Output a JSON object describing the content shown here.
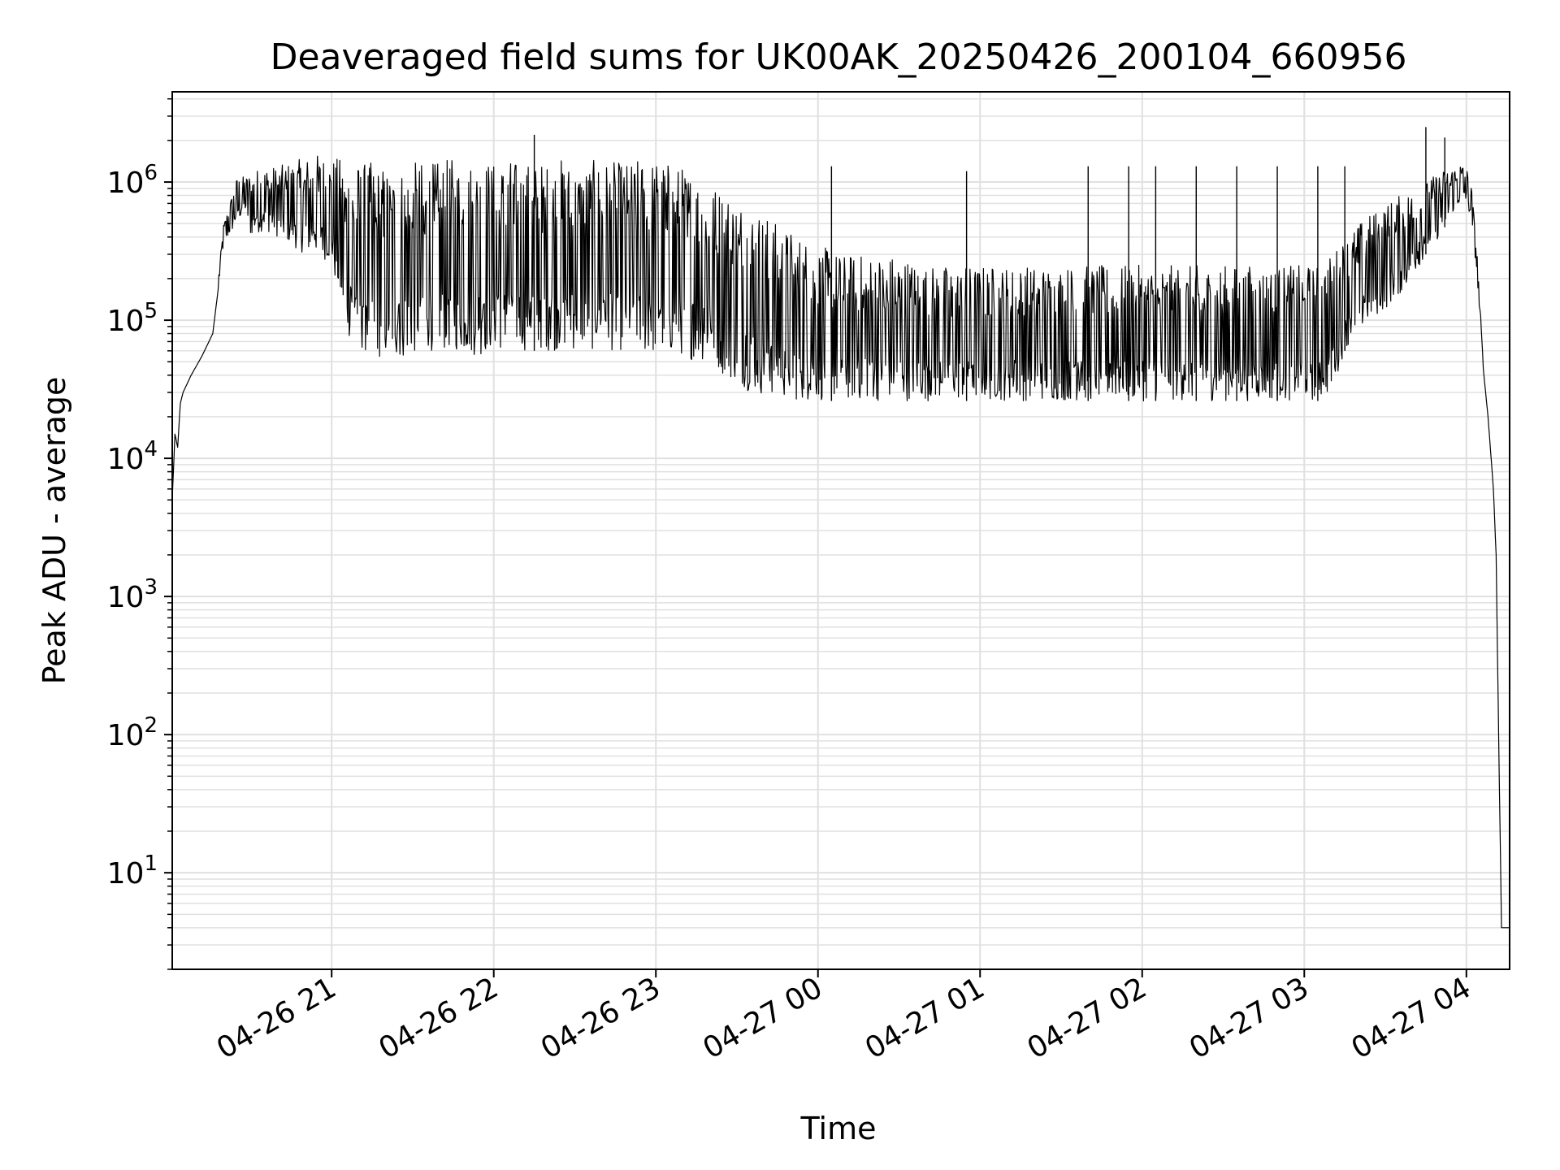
{
  "chart_data": {
    "type": "line",
    "title": "Deaveraged field sums for UK00AK_20250426_200104_660956",
    "xlabel": "Time",
    "ylabel": "Peak ADU - average",
    "yscale": "log",
    "grid": true,
    "legend": "none",
    "line_color": "#000000",
    "grid_color": "#e0e0e0",
    "xlim": [
      "2025-04-26 20:01",
      "2025-04-27 04:16"
    ],
    "ylim": [
      2,
      4500000
    ],
    "x_ticks": [
      {
        "t": "2025-04-26 21:00",
        "label": "04-26 21"
      },
      {
        "t": "2025-04-26 22:00",
        "label": "04-26 22"
      },
      {
        "t": "2025-04-26 23:00",
        "label": "04-26 23"
      },
      {
        "t": "2025-04-27 00:00",
        "label": "04-27 00"
      },
      {
        "t": "2025-04-27 01:00",
        "label": "04-27 01"
      },
      {
        "t": "2025-04-27 02:00",
        "label": "04-27 02"
      },
      {
        "t": "2025-04-27 03:00",
        "label": "04-27 03"
      },
      {
        "t": "2025-04-27 04:00",
        "label": "04-27 04"
      }
    ],
    "y_ticks": [
      {
        "value": 10,
        "base": "10",
        "exp": "1"
      },
      {
        "value": 100,
        "base": "10",
        "exp": "2"
      },
      {
        "value": 1000,
        "base": "10",
        "exp": "3"
      },
      {
        "value": 10000,
        "base": "10",
        "exp": "4"
      },
      {
        "value": 100000,
        "base": "10",
        "exp": "5"
      },
      {
        "value": 1000000,
        "base": "10",
        "exp": "6"
      }
    ],
    "series": [
      {
        "x": [
          "2025-04-26 20:01",
          "2025-04-26 20:02",
          "2025-04-26 20:03",
          "2025-04-26 20:04",
          "2025-04-26 20:05",
          "2025-04-26 20:08",
          "2025-04-26 20:12",
          "2025-04-26 20:16",
          "2025-04-26 20:20",
          "2025-04-26 20:25",
          "2025-04-26 20:28",
          "2025-04-26 20:30",
          "2025-04-26 20:35",
          "2025-04-26 20:40",
          "2025-04-26 20:45",
          "2025-04-26 20:50",
          "2025-04-26 20:55",
          "2025-04-26 21:00",
          "2025-04-26 21:05",
          "2025-04-26 21:10",
          "2025-04-26 21:15",
          "2025-04-26 21:20",
          "2025-04-26 21:25",
          "2025-04-26 21:30",
          "2025-04-26 21:35",
          "2025-04-26 21:40",
          "2025-04-26 21:45",
          "2025-04-26 21:50",
          "2025-04-26 21:55",
          "2025-04-26 22:00",
          "2025-04-26 22:05",
          "2025-04-26 22:10",
          "2025-04-26 22:15",
          "2025-04-26 22:20",
          "2025-04-26 22:25",
          "2025-04-26 22:30",
          "2025-04-26 22:35",
          "2025-04-26 22:40",
          "2025-04-26 22:45",
          "2025-04-26 22:50",
          "2025-04-26 22:55",
          "2025-04-26 23:00",
          "2025-04-26 23:05",
          "2025-04-26 23:10",
          "2025-04-26 23:15",
          "2025-04-26 23:20",
          "2025-04-26 23:25",
          "2025-04-26 23:30",
          "2025-04-26 23:35",
          "2025-04-26 23:40",
          "2025-04-26 23:45",
          "2025-04-26 23:50",
          "2025-04-26 23:55",
          "2025-04-27 00:00",
          "2025-04-27 00:10",
          "2025-04-27 00:20",
          "2025-04-27 00:30",
          "2025-04-27 00:40",
          "2025-04-27 00:50",
          "2025-04-27 01:00",
          "2025-04-27 01:10",
          "2025-04-27 01:20",
          "2025-04-27 01:30",
          "2025-04-27 01:40",
          "2025-04-27 01:50",
          "2025-04-27 02:00",
          "2025-04-27 02:10",
          "2025-04-27 02:20",
          "2025-04-27 02:30",
          "2025-04-27 02:40",
          "2025-04-27 02:50",
          "2025-04-27 03:00",
          "2025-04-27 03:05",
          "2025-04-27 03:10",
          "2025-04-27 03:15",
          "2025-04-27 03:20",
          "2025-04-27 03:25",
          "2025-04-27 03:30",
          "2025-04-27 03:35",
          "2025-04-27 03:40",
          "2025-04-27 03:45",
          "2025-04-27 03:50",
          "2025-04-27 03:55",
          "2025-04-27 03:58",
          "2025-04-27 04:00",
          "2025-04-27 04:02",
          "2025-04-27 04:04",
          "2025-04-27 04:06",
          "2025-04-27 04:08",
          "2025-04-27 04:10",
          "2025-04-27 04:11",
          "2025-04-27 04:12",
          "2025-04-27 04:13",
          "2025-04-27 04:14",
          "2025-04-27 04:15",
          "2025-04-27 04:16"
        ],
        "y_low": [
          5000,
          15000,
          12000,
          25000,
          30000,
          40000,
          55000,
          80000,
          350000,
          500000,
          600000,
          400000,
          450000,
          400000,
          350000,
          300000,
          300000,
          250000,
          80000,
          60000,
          55000,
          50000,
          50000,
          55000,
          60000,
          60000,
          60000,
          55000,
          55000,
          60000,
          60000,
          60000,
          60000,
          60000,
          60000,
          60000,
          60000,
          60000,
          60000,
          60000,
          55000,
          55000,
          55000,
          55000,
          50000,
          50000,
          40000,
          35000,
          30000,
          28000,
          28000,
          26000,
          26000,
          26000,
          26000,
          26000,
          26000,
          26000,
          26000,
          26000,
          26000,
          26000,
          26000,
          26000,
          26000,
          26000,
          26000,
          26000,
          26000,
          26000,
          26000,
          26000,
          26000,
          30000,
          60000,
          80000,
          100000,
          120000,
          150000,
          200000,
          300000,
          400000,
          600000,
          700000,
          700000,
          500000,
          200000,
          50000,
          20000,
          6000,
          2000,
          80,
          4,
          4,
          4,
          4
        ],
        "y_high": [
          5000,
          15000,
          12000,
          25000,
          30000,
          40000,
          55000,
          80000,
          500000,
          1100000,
          1100000,
          1200000,
          1300000,
          1300000,
          1400000,
          1500000,
          1600000,
          1500000,
          1500000,
          1400000,
          1400000,
          1300000,
          1300000,
          1400000,
          1400000,
          1400000,
          1500000,
          1400000,
          1600000,
          1400000,
          1500000,
          1400000,
          1400000,
          1400000,
          1500000,
          1400000,
          1400000,
          1500000,
          1400000,
          1400000,
          1500000,
          1500000,
          1400000,
          1300000,
          1200000,
          1000000,
          900000,
          800000,
          700000,
          600000,
          500000,
          450000,
          400000,
          350000,
          300000,
          300000,
          300000,
          250000,
          250000,
          250000,
          250000,
          250000,
          250000,
          250000,
          250000,
          250000,
          250000,
          250000,
          250000,
          250000,
          250000,
          250000,
          250000,
          300000,
          400000,
          500000,
          600000,
          700000,
          800000,
          900000,
          1000000,
          1200000,
          1300000,
          1400000,
          1300000,
          900000,
          300000,
          60000,
          20000,
          6000,
          2000,
          80,
          4,
          4,
          4,
          4
        ],
        "peaks": [
          {
            "x": "2025-04-26 22:15",
            "y": 2200000
          },
          {
            "x": "2025-04-27 00:05",
            "y": 1300000
          },
          {
            "x": "2025-04-27 00:55",
            "y": 1200000
          },
          {
            "x": "2025-04-27 01:40",
            "y": 1300000
          },
          {
            "x": "2025-04-27 01:55",
            "y": 1300000
          },
          {
            "x": "2025-04-27 02:05",
            "y": 1300000
          },
          {
            "x": "2025-04-27 02:20",
            "y": 1300000
          },
          {
            "x": "2025-04-27 02:35",
            "y": 1300000
          },
          {
            "x": "2025-04-27 02:50",
            "y": 1300000
          },
          {
            "x": "2025-04-27 03:05",
            "y": 1300000
          },
          {
            "x": "2025-04-27 03:15",
            "y": 1300000
          },
          {
            "x": "2025-04-27 03:45",
            "y": 2500000
          },
          {
            "x": "2025-04-27 03:52",
            "y": 2100000
          }
        ]
      }
    ]
  }
}
